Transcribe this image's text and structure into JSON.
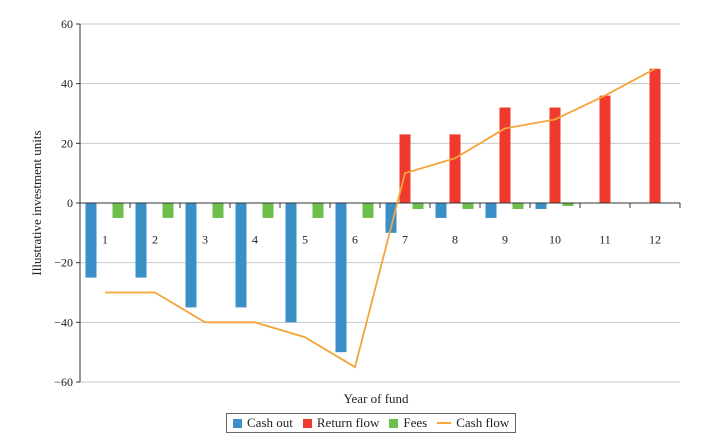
{
  "chart_data": {
    "type": "bar",
    "xlabel": "Year of fund",
    "ylabel": "Illustrative investment units",
    "ylim": [
      -60,
      60
    ],
    "yticks": [
      60,
      40,
      20,
      0,
      -20,
      -40,
      -60
    ],
    "ytick_labels": [
      "60",
      "40",
      "20",
      "0",
      "−20",
      "−40",
      "−60"
    ],
    "categories": [
      "1",
      "2",
      "3",
      "4",
      "5",
      "6",
      "7",
      "8",
      "9",
      "10",
      "11",
      "12"
    ],
    "series": [
      {
        "name": "Cash out",
        "type": "bar",
        "color": "#3a8fc6",
        "values": [
          -25,
          -25,
          -35,
          -35,
          -40,
          -50,
          -10,
          -5,
          -5,
          -2,
          0,
          0
        ]
      },
      {
        "name": "Return flow",
        "type": "bar",
        "color": "#f03a2e",
        "values": [
          0,
          0,
          0,
          0,
          0,
          0,
          23,
          23,
          32,
          32,
          36,
          45
        ]
      },
      {
        "name": "Fees",
        "type": "bar",
        "color": "#6bbf4a",
        "values": [
          -5,
          -5,
          -5,
          -5,
          -5,
          -5,
          -2,
          -2,
          -2,
          -1,
          0,
          0
        ]
      },
      {
        "name": "Cash flow",
        "type": "line",
        "color": "#f5a53a",
        "values": [
          -30,
          -30,
          -40,
          -40,
          -45,
          -55,
          10,
          15,
          25,
          28,
          36,
          45
        ]
      }
    ],
    "grid": "horizontal",
    "legend_position": "bottom"
  }
}
